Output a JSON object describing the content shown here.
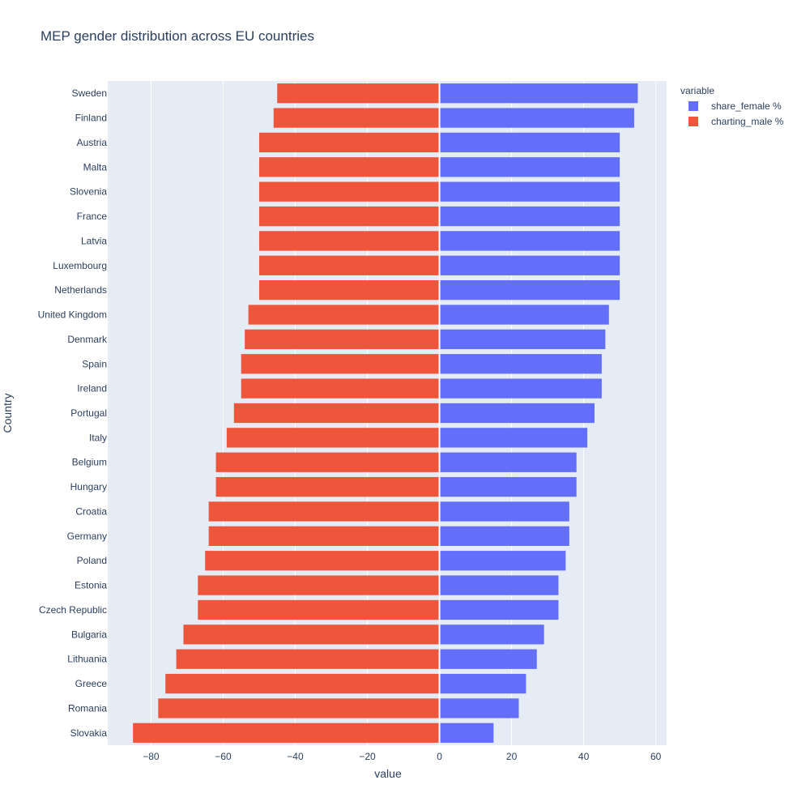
{
  "chart_data": {
    "type": "bar",
    "orientation": "horizontal",
    "barmode": "relative",
    "title": "MEP gender distribution across EU countries",
    "xlabel": "value",
    "ylabel": "Country",
    "xlim": [
      -92,
      63
    ],
    "xticks": [
      -80,
      -60,
      -40,
      -20,
      0,
      20,
      40,
      60
    ],
    "xtick_labels": [
      "−80",
      "−60",
      "−40",
      "−20",
      "0",
      "20",
      "40",
      "60"
    ],
    "grid": true,
    "legend_title": "variable",
    "legend_position": "top-right",
    "categories": [
      "Sweden",
      "Finland",
      "Austria",
      "Malta",
      "Slovenia",
      "France",
      "Latvia",
      "Luxembourg",
      "Netherlands",
      "United Kingdom",
      "Denmark",
      "Spain",
      "Ireland",
      "Portugal",
      "Italy",
      "Belgium",
      "Hungary",
      "Croatia",
      "Germany",
      "Poland",
      "Estonia",
      "Czech Republic",
      "Bulgaria",
      "Lithuania",
      "Greece",
      "Romania",
      "Slovakia"
    ],
    "series": [
      {
        "name": "share_female %",
        "color": "#636efa",
        "values": [
          55,
          54,
          50,
          50,
          50,
          50,
          50,
          50,
          50,
          47,
          46,
          45,
          45,
          43,
          41,
          38,
          38,
          36,
          36,
          35,
          33,
          33,
          29,
          27,
          24,
          22,
          15
        ]
      },
      {
        "name": "charting_male %",
        "color": "#ef553b",
        "values": [
          -45,
          -46,
          -50,
          -50,
          -50,
          -50,
          -50,
          -50,
          -50,
          -53,
          -54,
          -55,
          -55,
          -57,
          -59,
          -62,
          -62,
          -64,
          -64,
          -65,
          -67,
          -67,
          -71,
          -73,
          -76,
          -78,
          -85
        ]
      }
    ]
  }
}
